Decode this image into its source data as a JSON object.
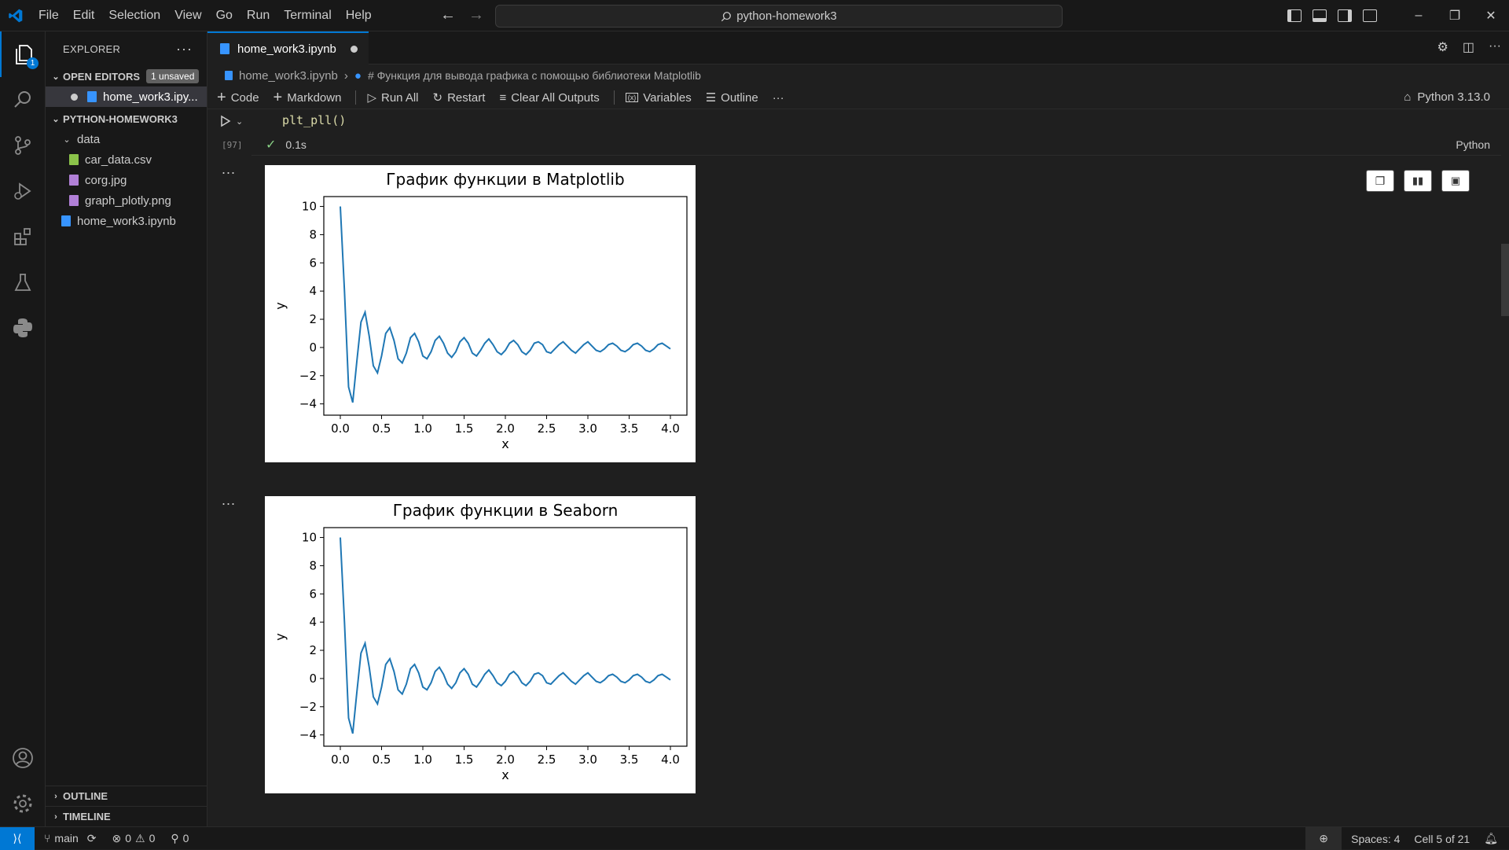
{
  "titlebar": {
    "menu": [
      "File",
      "Edit",
      "Selection",
      "View",
      "Go",
      "Run",
      "Terminal",
      "Help"
    ],
    "search": "python-homework3"
  },
  "activity": {
    "explorer_badge": "1"
  },
  "sidebar": {
    "title": "EXPLORER",
    "open_editors": {
      "label": "OPEN EDITORS",
      "badge": "1 unsaved",
      "items": [
        "home_work3.ipy..."
      ]
    },
    "workspace": {
      "label": "PYTHON-HOMEWORK3",
      "folder": "data",
      "files": [
        "car_data.csv",
        "corg.jpg",
        "graph_plotly.png"
      ],
      "root_file": "home_work3.ipynb"
    },
    "outline": "OUTLINE",
    "timeline": "TIMELINE"
  },
  "editor": {
    "tab": "home_work3.ipynb",
    "breadcrumb": {
      "file": "home_work3.ipynb",
      "cell": "# Функция для вывода графика с помощью библиотеки Matplotlib"
    },
    "toolbar": {
      "code": "Code",
      "markdown": "Markdown",
      "run_all": "Run All",
      "restart": "Restart",
      "clear": "Clear All Outputs",
      "variables": "Variables",
      "outline": "Outline",
      "more": "···"
    },
    "kernel": "Python 3.13.0",
    "cell": {
      "code": "plt_pll()",
      "exec_count": "[97]",
      "time": "0.1s",
      "language": "Python",
      "output_more": "..."
    }
  },
  "chart_data": [
    {
      "type": "line",
      "title": "График функции в Matplotlib",
      "xlabel": "x",
      "ylabel": "y",
      "xlim": [
        -0.2,
        4.2
      ],
      "ylim": [
        -4.8,
        10.7
      ],
      "xticks": [
        "0.0",
        "0.5",
        "1.0",
        "1.5",
        "2.0",
        "2.5",
        "3.0",
        "3.5",
        "4.0"
      ],
      "yticks": [
        "−4",
        "−2",
        "0",
        "2",
        "4",
        "6",
        "8",
        "10"
      ],
      "series": [
        {
          "color": "#1f77b4",
          "x": [
            0.0,
            0.05,
            0.1,
            0.15,
            0.2,
            0.25,
            0.3,
            0.35,
            0.4,
            0.45,
            0.5,
            0.55,
            0.6,
            0.65,
            0.7,
            0.75,
            0.8,
            0.85,
            0.9,
            0.95,
            1.0,
            1.05,
            1.1,
            1.15,
            1.2,
            1.25,
            1.3,
            1.35,
            1.4,
            1.45,
            1.5,
            1.55,
            1.6,
            1.65,
            1.7,
            1.75,
            1.8,
            1.85,
            1.9,
            1.95,
            2.0,
            2.05,
            2.1,
            2.15,
            2.2,
            2.25,
            2.3,
            2.35,
            2.4,
            2.45,
            2.5,
            2.55,
            2.6,
            2.65,
            2.7,
            2.75,
            2.8,
            2.85,
            2.9,
            2.95,
            3.0,
            3.05,
            3.1,
            3.15,
            3.2,
            3.25,
            3.3,
            3.35,
            3.4,
            3.45,
            3.5,
            3.55,
            3.6,
            3.65,
            3.7,
            3.75,
            3.8,
            3.85,
            3.9,
            3.95,
            4.0
          ],
          "y": [
            10.0,
            4.0,
            -2.8,
            -3.9,
            -1.0,
            1.8,
            2.5,
            0.8,
            -1.3,
            -1.8,
            -0.6,
            1.0,
            1.4,
            0.5,
            -0.8,
            -1.1,
            -0.4,
            0.7,
            1.0,
            0.4,
            -0.6,
            -0.8,
            -0.3,
            0.5,
            0.8,
            0.3,
            -0.4,
            -0.7,
            -0.3,
            0.4,
            0.7,
            0.3,
            -0.4,
            -0.6,
            -0.2,
            0.3,
            0.6,
            0.2,
            -0.3,
            -0.5,
            -0.2,
            0.3,
            0.5,
            0.2,
            -0.3,
            -0.5,
            -0.2,
            0.3,
            0.4,
            0.2,
            -0.3,
            -0.4,
            -0.1,
            0.2,
            0.4,
            0.1,
            -0.2,
            -0.4,
            -0.1,
            0.2,
            0.4,
            0.1,
            -0.2,
            -0.3,
            -0.1,
            0.2,
            0.3,
            0.1,
            -0.2,
            -0.3,
            -0.1,
            0.2,
            0.3,
            0.1,
            -0.2,
            -0.3,
            -0.1,
            0.2,
            0.3,
            0.1,
            -0.1
          ]
        }
      ]
    },
    {
      "type": "line",
      "title": "График функции в Seaborn",
      "xlabel": "x",
      "ylabel": "y",
      "xlim": [
        -0.2,
        4.2
      ],
      "ylim": [
        -4.8,
        10.7
      ],
      "xticks": [
        "0.0",
        "0.5",
        "1.0",
        "1.5",
        "2.0",
        "2.5",
        "3.0",
        "3.5",
        "4.0"
      ],
      "yticks": [
        "−4",
        "−2",
        "0",
        "2",
        "4",
        "6",
        "8",
        "10"
      ],
      "series": [
        {
          "color": "#1f77b4",
          "x": [
            0.0,
            0.05,
            0.1,
            0.15,
            0.2,
            0.25,
            0.3,
            0.35,
            0.4,
            0.45,
            0.5,
            0.55,
            0.6,
            0.65,
            0.7,
            0.75,
            0.8,
            0.85,
            0.9,
            0.95,
            1.0,
            1.05,
            1.1,
            1.15,
            1.2,
            1.25,
            1.3,
            1.35,
            1.4,
            1.45,
            1.5,
            1.55,
            1.6,
            1.65,
            1.7,
            1.75,
            1.8,
            1.85,
            1.9,
            1.95,
            2.0,
            2.05,
            2.1,
            2.15,
            2.2,
            2.25,
            2.3,
            2.35,
            2.4,
            2.45,
            2.5,
            2.55,
            2.6,
            2.65,
            2.7,
            2.75,
            2.8,
            2.85,
            2.9,
            2.95,
            3.0,
            3.05,
            3.1,
            3.15,
            3.2,
            3.25,
            3.3,
            3.35,
            3.4,
            3.45,
            3.5,
            3.55,
            3.6,
            3.65,
            3.7,
            3.75,
            3.8,
            3.85,
            3.9,
            3.95,
            4.0
          ],
          "y": [
            10.0,
            4.0,
            -2.8,
            -3.9,
            -1.0,
            1.8,
            2.5,
            0.8,
            -1.3,
            -1.8,
            -0.6,
            1.0,
            1.4,
            0.5,
            -0.8,
            -1.1,
            -0.4,
            0.7,
            1.0,
            0.4,
            -0.6,
            -0.8,
            -0.3,
            0.5,
            0.8,
            0.3,
            -0.4,
            -0.7,
            -0.3,
            0.4,
            0.7,
            0.3,
            -0.4,
            -0.6,
            -0.2,
            0.3,
            0.6,
            0.2,
            -0.3,
            -0.5,
            -0.2,
            0.3,
            0.5,
            0.2,
            -0.3,
            -0.5,
            -0.2,
            0.3,
            0.4,
            0.2,
            -0.3,
            -0.4,
            -0.1,
            0.2,
            0.4,
            0.1,
            -0.2,
            -0.4,
            -0.1,
            0.2,
            0.4,
            0.1,
            -0.2,
            -0.3,
            -0.1,
            0.2,
            0.3,
            0.1,
            -0.2,
            -0.3,
            -0.1,
            0.2,
            0.3,
            0.1,
            -0.2,
            -0.3,
            -0.1,
            0.2,
            0.3,
            0.1,
            -0.1
          ]
        }
      ]
    }
  ],
  "statusbar": {
    "branch": "main",
    "errors": "0",
    "warnings": "0",
    "ports": "0",
    "spaces": "Spaces: 4",
    "cell": "Cell 5 of 21"
  }
}
